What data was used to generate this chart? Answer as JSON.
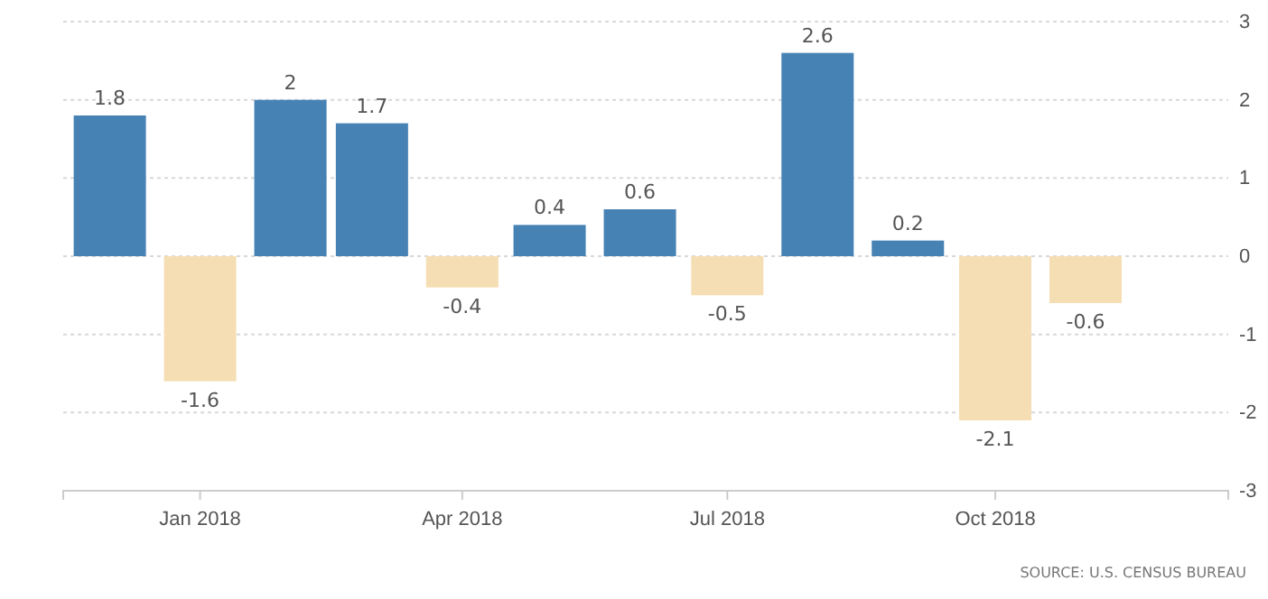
{
  "chart_data": {
    "type": "bar",
    "x": [
      "2017-12",
      "2018-01",
      "2018-02",
      "2018-03",
      "2018-04",
      "2018-05",
      "2018-06",
      "2018-07",
      "2018-08",
      "2018-09",
      "2018-10",
      "2018-11"
    ],
    "values": [
      1.8,
      -1.6,
      2,
      1.7,
      -0.4,
      0.4,
      0.6,
      -0.5,
      2.6,
      0.2,
      -2.1,
      -0.6
    ],
    "colors": [
      "#4682b4",
      "#f5deb3",
      "#4682b4",
      "#4682b4",
      "#f5deb3",
      "#4682b4",
      "#4682b4",
      "#f5deb3",
      "#4682b4",
      "#4682b4",
      "#f5deb3",
      "#f5deb3"
    ],
    "data_labels": true,
    "xlim": [
      "2017-11-15",
      "2018-12-20"
    ],
    "xticks": [
      {
        "value": "2018-01",
        "label": "Jan 2018"
      },
      {
        "value": "2018-04",
        "label": "Apr 2018"
      },
      {
        "value": "2018-07",
        "label": "Jul 2018"
      },
      {
        "value": "2018-10",
        "label": "Oct 2018"
      }
    ],
    "ylim": [
      -3,
      3
    ],
    "yticks": [
      -3,
      -2,
      -1,
      0,
      1,
      2,
      3
    ],
    "grid": "y",
    "annotations": [
      "SOURCE: U.S. CENSUS BUREAU"
    ]
  }
}
